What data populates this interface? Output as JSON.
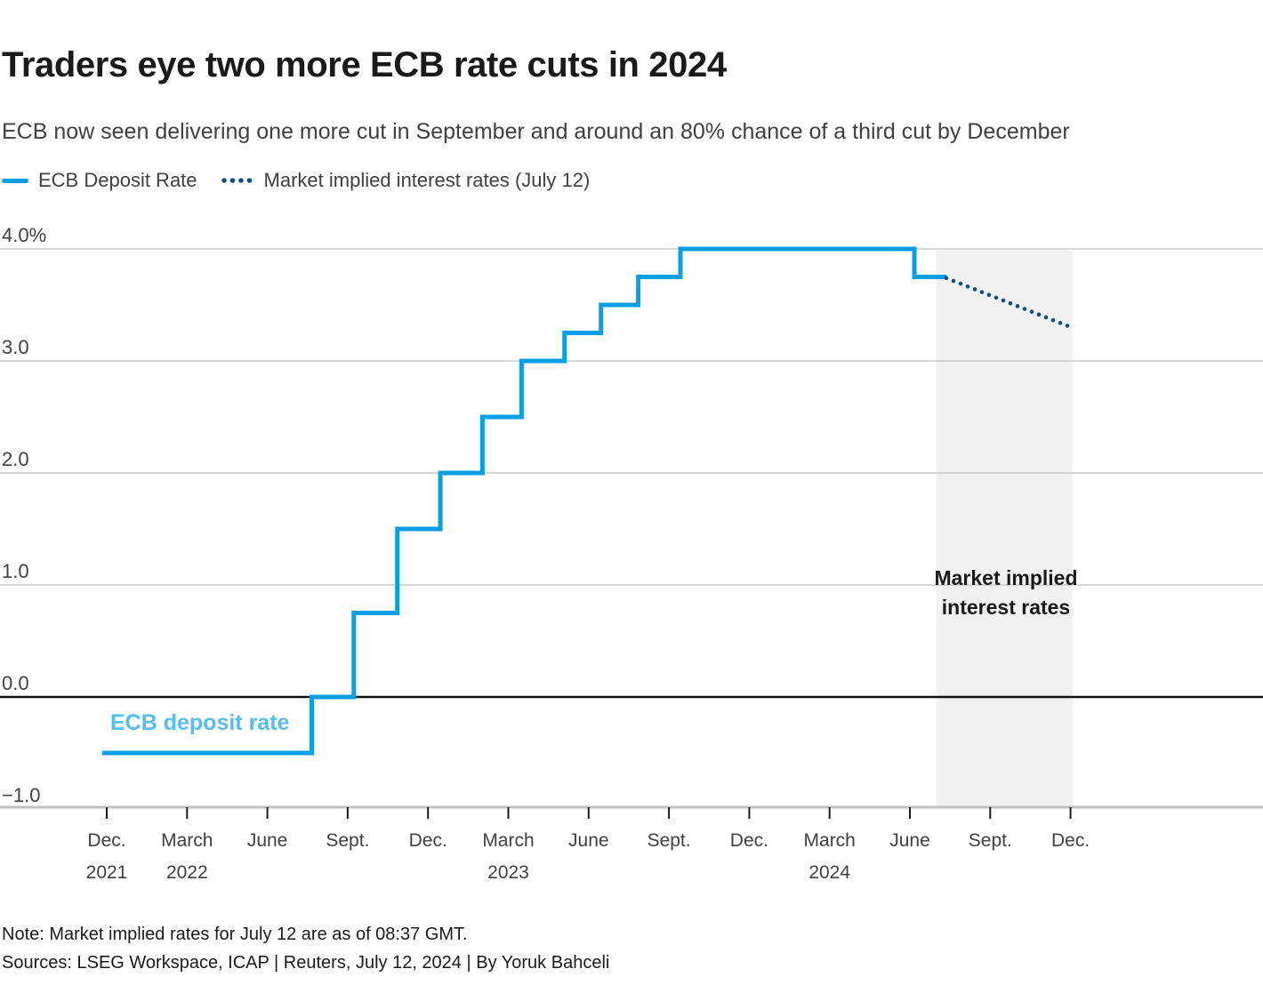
{
  "header": {
    "title": "Traders eye two more ECB rate cuts in 2024",
    "subtitle": "ECB now seen delivering one more cut in September and around an 80% chance of a third cut by December"
  },
  "legend": {
    "items": [
      {
        "label": "ECB Deposit Rate",
        "style": "solid"
      },
      {
        "label": "Market implied interest rates (July 12)",
        "style": "dotted"
      }
    ]
  },
  "annotations": {
    "implied_label": "Market implied interest rates",
    "deposit_label": "ECB deposit rate"
  },
  "footer": {
    "note": "Note: Market implied rates for July 12 are as of 08:37 GMT.",
    "sources": "Sources: LSEG Workspace, ICAP | Reuters, July 12, 2024 | By Yoruk Bahceli"
  },
  "colors": {
    "deposit_line": "#0a9ee4",
    "deposit_label": "#55bdf1",
    "implied_line": "#0d4e8a",
    "grid": "#c8c8c8",
    "zero_line": "#111111",
    "axis_line": "#c0c0c0",
    "tick": "#1a1a1a",
    "shade": "#f1f1f1",
    "title_text": "#1a1a1a",
    "secondary_text": "#404040",
    "footer_text": "#1a1a1a"
  },
  "chart_data": {
    "type": "line",
    "title": "Traders eye two more ECB rate cuts in 2024",
    "xlabel": "",
    "ylabel": "%",
    "ylim": [
      -1.0,
      4.0
    ],
    "grid": true,
    "legend_position": "top-left",
    "y_ticks": [
      {
        "value": 4.0,
        "label": "4.0%"
      },
      {
        "value": 3.0,
        "label": "3.0"
      },
      {
        "value": 2.0,
        "label": "2.0"
      },
      {
        "value": 1.0,
        "label": "1.0"
      },
      {
        "value": 0.0,
        "label": "0.0"
      },
      {
        "value": -1.0,
        "label": "−1.0"
      }
    ],
    "x_ticks": [
      {
        "month_offset": 0,
        "label": "Dec.",
        "year": "2021"
      },
      {
        "month_offset": 3,
        "label": "March",
        "year": "2022"
      },
      {
        "month_offset": 6,
        "label": "June"
      },
      {
        "month_offset": 9,
        "label": "Sept."
      },
      {
        "month_offset": 12,
        "label": "Dec."
      },
      {
        "month_offset": 15,
        "label": "March",
        "year": "2023"
      },
      {
        "month_offset": 18,
        "label": "June"
      },
      {
        "month_offset": 21,
        "label": "Sept."
      },
      {
        "month_offset": 24,
        "label": "Dec."
      },
      {
        "month_offset": 27,
        "label": "March",
        "year": "2024"
      },
      {
        "month_offset": 30,
        "label": "June"
      },
      {
        "month_offset": 33,
        "label": "Sept."
      },
      {
        "month_offset": 36,
        "label": "Dec."
      }
    ],
    "series": [
      {
        "name": "ECB Deposit Rate",
        "style": "step",
        "end_date": "2024-07-12",
        "points": [
          {
            "date": "2021-11-26",
            "rate": -0.5
          },
          {
            "date": "2022-07-21",
            "rate": 0.0
          },
          {
            "date": "2022-09-08",
            "rate": 0.75
          },
          {
            "date": "2022-10-27",
            "rate": 1.5
          },
          {
            "date": "2022-12-15",
            "rate": 2.0
          },
          {
            "date": "2023-02-02",
            "rate": 2.5
          },
          {
            "date": "2023-03-16",
            "rate": 3.0
          },
          {
            "date": "2023-05-04",
            "rate": 3.25
          },
          {
            "date": "2023-06-15",
            "rate": 3.5
          },
          {
            "date": "2023-07-27",
            "rate": 3.75
          },
          {
            "date": "2023-09-14",
            "rate": 4.0
          },
          {
            "date": "2024-06-06",
            "rate": 3.75
          }
        ]
      },
      {
        "name": "Market implied interest rates (July 12)",
        "style": "dotted",
        "points": [
          {
            "date": "2024-07-12",
            "rate": 3.74
          },
          {
            "date": "2024-11-29",
            "rate": 3.31
          }
        ]
      }
    ],
    "shaded_region": {
      "start": "2024-07-01",
      "end": "2024-12-03"
    }
  }
}
